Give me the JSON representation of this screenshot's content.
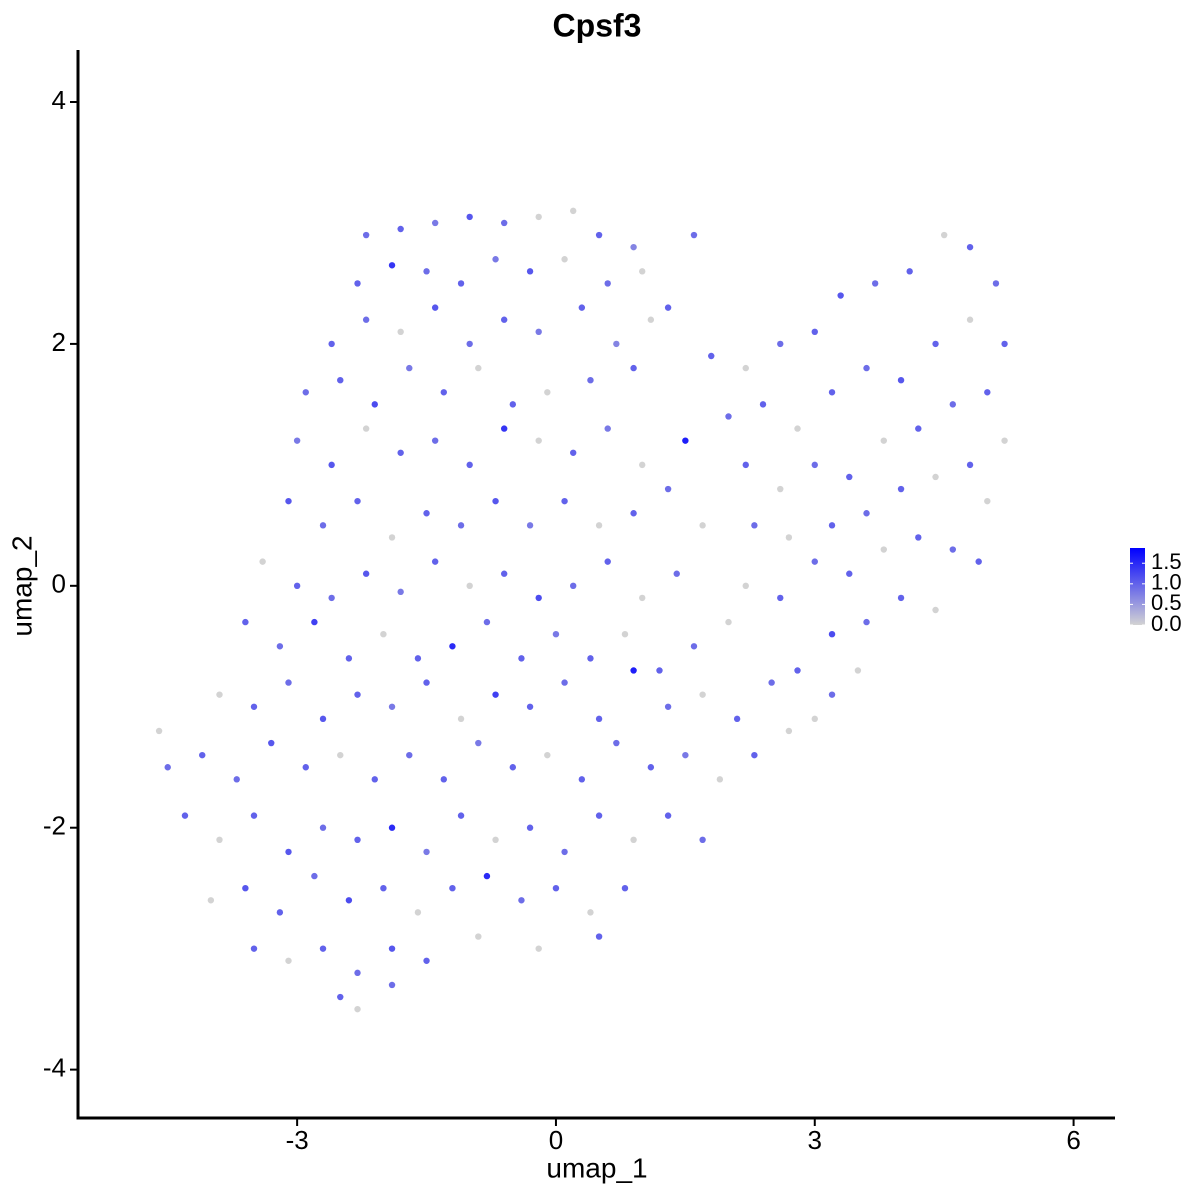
{
  "chart_data": {
    "type": "scatter",
    "title": "Cpsf3",
    "x_label": "umap_1",
    "y_label": "umap_2",
    "xlim": [
      -5.54,
      6.48
    ],
    "ylim": [
      -4.4,
      4.43
    ],
    "xticks": [
      -3,
      0,
      3,
      6
    ],
    "yticks": [
      -4,
      -2,
      0,
      2,
      4
    ],
    "color_low": "#d3d3d3",
    "color_high": "#0000ff",
    "color_lim": [
      0,
      1.87
    ],
    "color_ticks": [
      {
        "value": 0,
        "label": "0.0"
      },
      0.5,
      {
        "value": 1,
        "label": "1.0"
      },
      1.5
    ],
    "x": [
      -2.2,
      -1.8,
      -1.4,
      -1.0,
      -0.6,
      -0.2,
      0.2,
      0.5,
      0.9,
      1.6,
      -2.3,
      -1.9,
      -1.5,
      -1.1,
      -0.7,
      -0.3,
      0.1,
      0.6,
      1.0,
      1.3,
      -2.6,
      -2.2,
      -1.8,
      -1.4,
      -1.0,
      -0.6,
      -0.2,
      0.3,
      0.7,
      1.1,
      -2.9,
      -2.5,
      -2.1,
      -1.7,
      -1.3,
      -0.9,
      -0.5,
      -0.1,
      0.4,
      0.9,
      -3.0,
      -2.6,
      -2.2,
      -1.8,
      -1.4,
      -1.0,
      -0.6,
      -0.2,
      0.2,
      0.6,
      1.0,
      1.5,
      -3.1,
      -2.7,
      -2.3,
      -1.9,
      -1.5,
      -1.1,
      -0.7,
      -0.3,
      0.1,
      0.5,
      0.9,
      1.3,
      1.7,
      -3.4,
      -3.0,
      -2.6,
      -2.2,
      -1.8,
      -1.4,
      -1.0,
      -0.6,
      -0.2,
      0.2,
      0.6,
      1.0,
      1.4,
      -3.6,
      -3.2,
      -2.8,
      -2.4,
      -2.0,
      -1.6,
      -1.2,
      -0.8,
      -0.4,
      0.0,
      0.4,
      0.8,
      1.2,
      1.6,
      2.0,
      -3.9,
      -3.5,
      -3.1,
      -2.7,
      -2.3,
      -1.9,
      -1.5,
      -1.1,
      -0.7,
      -0.3,
      0.1,
      0.5,
      0.9,
      1.3,
      1.7,
      2.1,
      2.5,
      -4.6,
      -4.5,
      -4.1,
      -3.7,
      -3.3,
      -2.9,
      -2.5,
      -2.1,
      -1.7,
      -1.3,
      -0.9,
      -0.5,
      -0.1,
      0.3,
      0.7,
      1.1,
      1.5,
      1.9,
      2.3,
      2.7,
      -4.3,
      -3.9,
      -3.5,
      -3.1,
      -2.7,
      -2.3,
      -1.9,
      -1.5,
      -1.1,
      -0.7,
      -0.3,
      0.1,
      0.5,
      0.9,
      1.3,
      1.7,
      -4.0,
      -3.6,
      -3.2,
      -2.8,
      -2.4,
      -2.0,
      -1.6,
      -1.2,
      -0.8,
      -0.4,
      0.0,
      0.4,
      0.8,
      -3.5,
      -3.1,
      -2.7,
      -2.3,
      -1.9,
      -1.5,
      -0.9,
      -0.2,
      0.5,
      -2.5,
      -2.3,
      -1.9,
      1.8,
      2.2,
      2.6,
      3.0,
      3.3,
      3.7,
      4.1,
      4.5,
      4.8,
      5.1,
      2.0,
      2.4,
      2.8,
      3.2,
      3.6,
      4.0,
      4.4,
      4.8,
      5.2,
      2.2,
      2.6,
      3.0,
      3.4,
      3.8,
      4.2,
      4.6,
      5.0,
      5.2,
      2.3,
      2.7,
      3.2,
      3.6,
      4.0,
      4.4,
      4.8,
      5.0,
      2.2,
      2.6,
      3.0,
      3.4,
      3.8,
      4.2,
      4.6,
      4.9,
      3.2,
      3.6,
      4.0,
      4.4,
      2.8,
      3.2,
      3.5,
      3.0
    ],
    "y": [
      2.9,
      2.95,
      3.0,
      3.05,
      3.0,
      3.05,
      3.1,
      2.9,
      2.8,
      2.9,
      2.5,
      2.65,
      2.6,
      2.5,
      2.7,
      2.6,
      2.7,
      2.5,
      2.6,
      2.3,
      2.0,
      2.2,
      2.1,
      2.3,
      2.0,
      2.2,
      2.1,
      2.3,
      2.0,
      2.2,
      1.6,
      1.7,
      1.5,
      1.8,
      1.6,
      1.8,
      1.5,
      1.6,
      1.7,
      1.8,
      1.2,
      1.0,
      1.3,
      1.1,
      1.2,
      1.0,
      1.3,
      1.2,
      1.1,
      1.3,
      1.0,
      1.2,
      0.7,
      0.5,
      0.7,
      0.4,
      0.6,
      0.5,
      0.7,
      0.5,
      0.7,
      0.5,
      0.6,
      0.8,
      0.5,
      0.2,
      0.0,
      -0.1,
      0.1,
      -0.05,
      0.2,
      0.0,
      0.1,
      -0.1,
      0.0,
      0.2,
      -0.1,
      0.1,
      -0.3,
      -0.5,
      -0.3,
      -0.6,
      -0.4,
      -0.6,
      -0.5,
      -0.3,
      -0.6,
      -0.4,
      -0.6,
      -0.4,
      -0.7,
      -0.5,
      -0.3,
      -0.9,
      -1.0,
      -0.8,
      -1.1,
      -0.9,
      -1.0,
      -0.8,
      -1.1,
      -0.9,
      -1.0,
      -0.8,
      -1.1,
      -0.7,
      -1.0,
      -0.9,
      -1.1,
      -0.8,
      -1.2,
      -1.5,
      -1.4,
      -1.6,
      -1.3,
      -1.5,
      -1.4,
      -1.6,
      -1.4,
      -1.6,
      -1.3,
      -1.5,
      -1.4,
      -1.6,
      -1.3,
      -1.5,
      -1.4,
      -1.6,
      -1.4,
      -1.2,
      -1.9,
      -2.1,
      -1.9,
      -2.2,
      -2.0,
      -2.1,
      -2.0,
      -2.2,
      -1.9,
      -2.1,
      -2.0,
      -2.2,
      -1.9,
      -2.1,
      -1.9,
      -2.1,
      -2.6,
      -2.5,
      -2.7,
      -2.4,
      -2.6,
      -2.5,
      -2.7,
      -2.5,
      -2.4,
      -2.6,
      -2.5,
      -2.7,
      -2.5,
      -3.0,
      -3.1,
      -3.0,
      -3.2,
      -3.0,
      -3.1,
      -2.9,
      -3.0,
      -2.9,
      -3.4,
      -3.5,
      -3.3,
      1.9,
      1.8,
      2.0,
      2.1,
      2.4,
      2.5,
      2.6,
      2.9,
      2.8,
      2.5,
      1.4,
      1.5,
      1.3,
      1.6,
      1.8,
      1.7,
      2.0,
      2.2,
      2.0,
      1.0,
      0.8,
      1.0,
      0.9,
      1.2,
      1.3,
      1.5,
      1.6,
      1.2,
      0.5,
      0.4,
      0.5,
      0.6,
      0.8,
      0.9,
      1.0,
      0.7,
      0.0,
      -0.1,
      0.2,
      0.1,
      0.3,
      0.4,
      0.3,
      0.2,
      -0.4,
      -0.3,
      -0.1,
      -0.2,
      -0.7,
      -0.9,
      -0.7,
      -1.1
    ],
    "values": [
      0.9,
      1.0,
      0.8,
      1.1,
      0.9,
      0,
      0,
      1.0,
      0.7,
      0.9,
      1.0,
      1.4,
      0.9,
      1.0,
      0.8,
      1.1,
      0,
      0.9,
      0,
      1.0,
      1.0,
      0.9,
      0,
      1.1,
      0.9,
      1.0,
      0.8,
      1.0,
      0.7,
      0,
      0.9,
      1.0,
      1.2,
      0.8,
      1.0,
      0,
      1.0,
      0,
      0.9,
      1.0,
      0.8,
      1.1,
      0,
      1.0,
      0.9,
      1.0,
      1.4,
      0,
      1.0,
      0.8,
      0,
      1.6,
      1.1,
      0.9,
      1.0,
      0,
      1.0,
      0.9,
      1.1,
      0.8,
      1.0,
      0,
      1.0,
      0.9,
      0,
      0,
      1.0,
      0.9,
      1.1,
      0.8,
      1.0,
      0,
      1.0,
      1.2,
      0.9,
      1.0,
      0,
      0.9,
      1.0,
      0.9,
      1.3,
      1.0,
      0,
      1.0,
      1.5,
      0.9,
      1.0,
      0.8,
      1.0,
      0,
      1.0,
      0.9,
      0,
      0,
      1.0,
      0.9,
      1.1,
      1.0,
      0.8,
      1.0,
      0,
      1.3,
      1.0,
      0.9,
      1.0,
      1.6,
      0.9,
      0,
      1.0,
      0.9,
      0,
      0.9,
      1.0,
      0.9,
      1.1,
      1.0,
      0,
      1.0,
      0.9,
      1.0,
      0.8,
      1.0,
      0,
      1.0,
      0.9,
      1.0,
      0.8,
      0,
      1.0,
      0,
      1.0,
      0,
      1.0,
      1.1,
      0.9,
      1.0,
      1.5,
      0.8,
      1.0,
      0,
      1.0,
      0.9,
      1.0,
      0,
      1.0,
      0.9,
      0,
      1.1,
      1.0,
      0.9,
      1.2,
      1.0,
      0,
      1.0,
      1.5,
      0.9,
      1.0,
      0,
      1.0,
      1.0,
      0,
      1.0,
      0.9,
      1.1,
      1.0,
      0,
      0,
      1.0,
      1.0,
      0,
      0.9,
      1.0,
      0,
      0.9,
      1.0,
      1.1,
      0.9,
      1.0,
      0,
      1.0,
      0.9,
      0.9,
      1.0,
      0,
      1.0,
      0.9,
      1.1,
      1.0,
      0,
      1.0,
      1.0,
      0,
      0.9,
      1.0,
      0,
      1.0,
      0.9,
      1.0,
      0,
      0.9,
      0,
      1.0,
      0.9,
      1.0,
      0,
      1.0,
      0,
      0,
      1.0,
      0.9,
      1.0,
      0,
      1.0,
      0.9,
      1.0,
      1.2,
      0.9,
      1.0,
      0,
      1.0,
      0.9,
      0,
      0
    ]
  }
}
